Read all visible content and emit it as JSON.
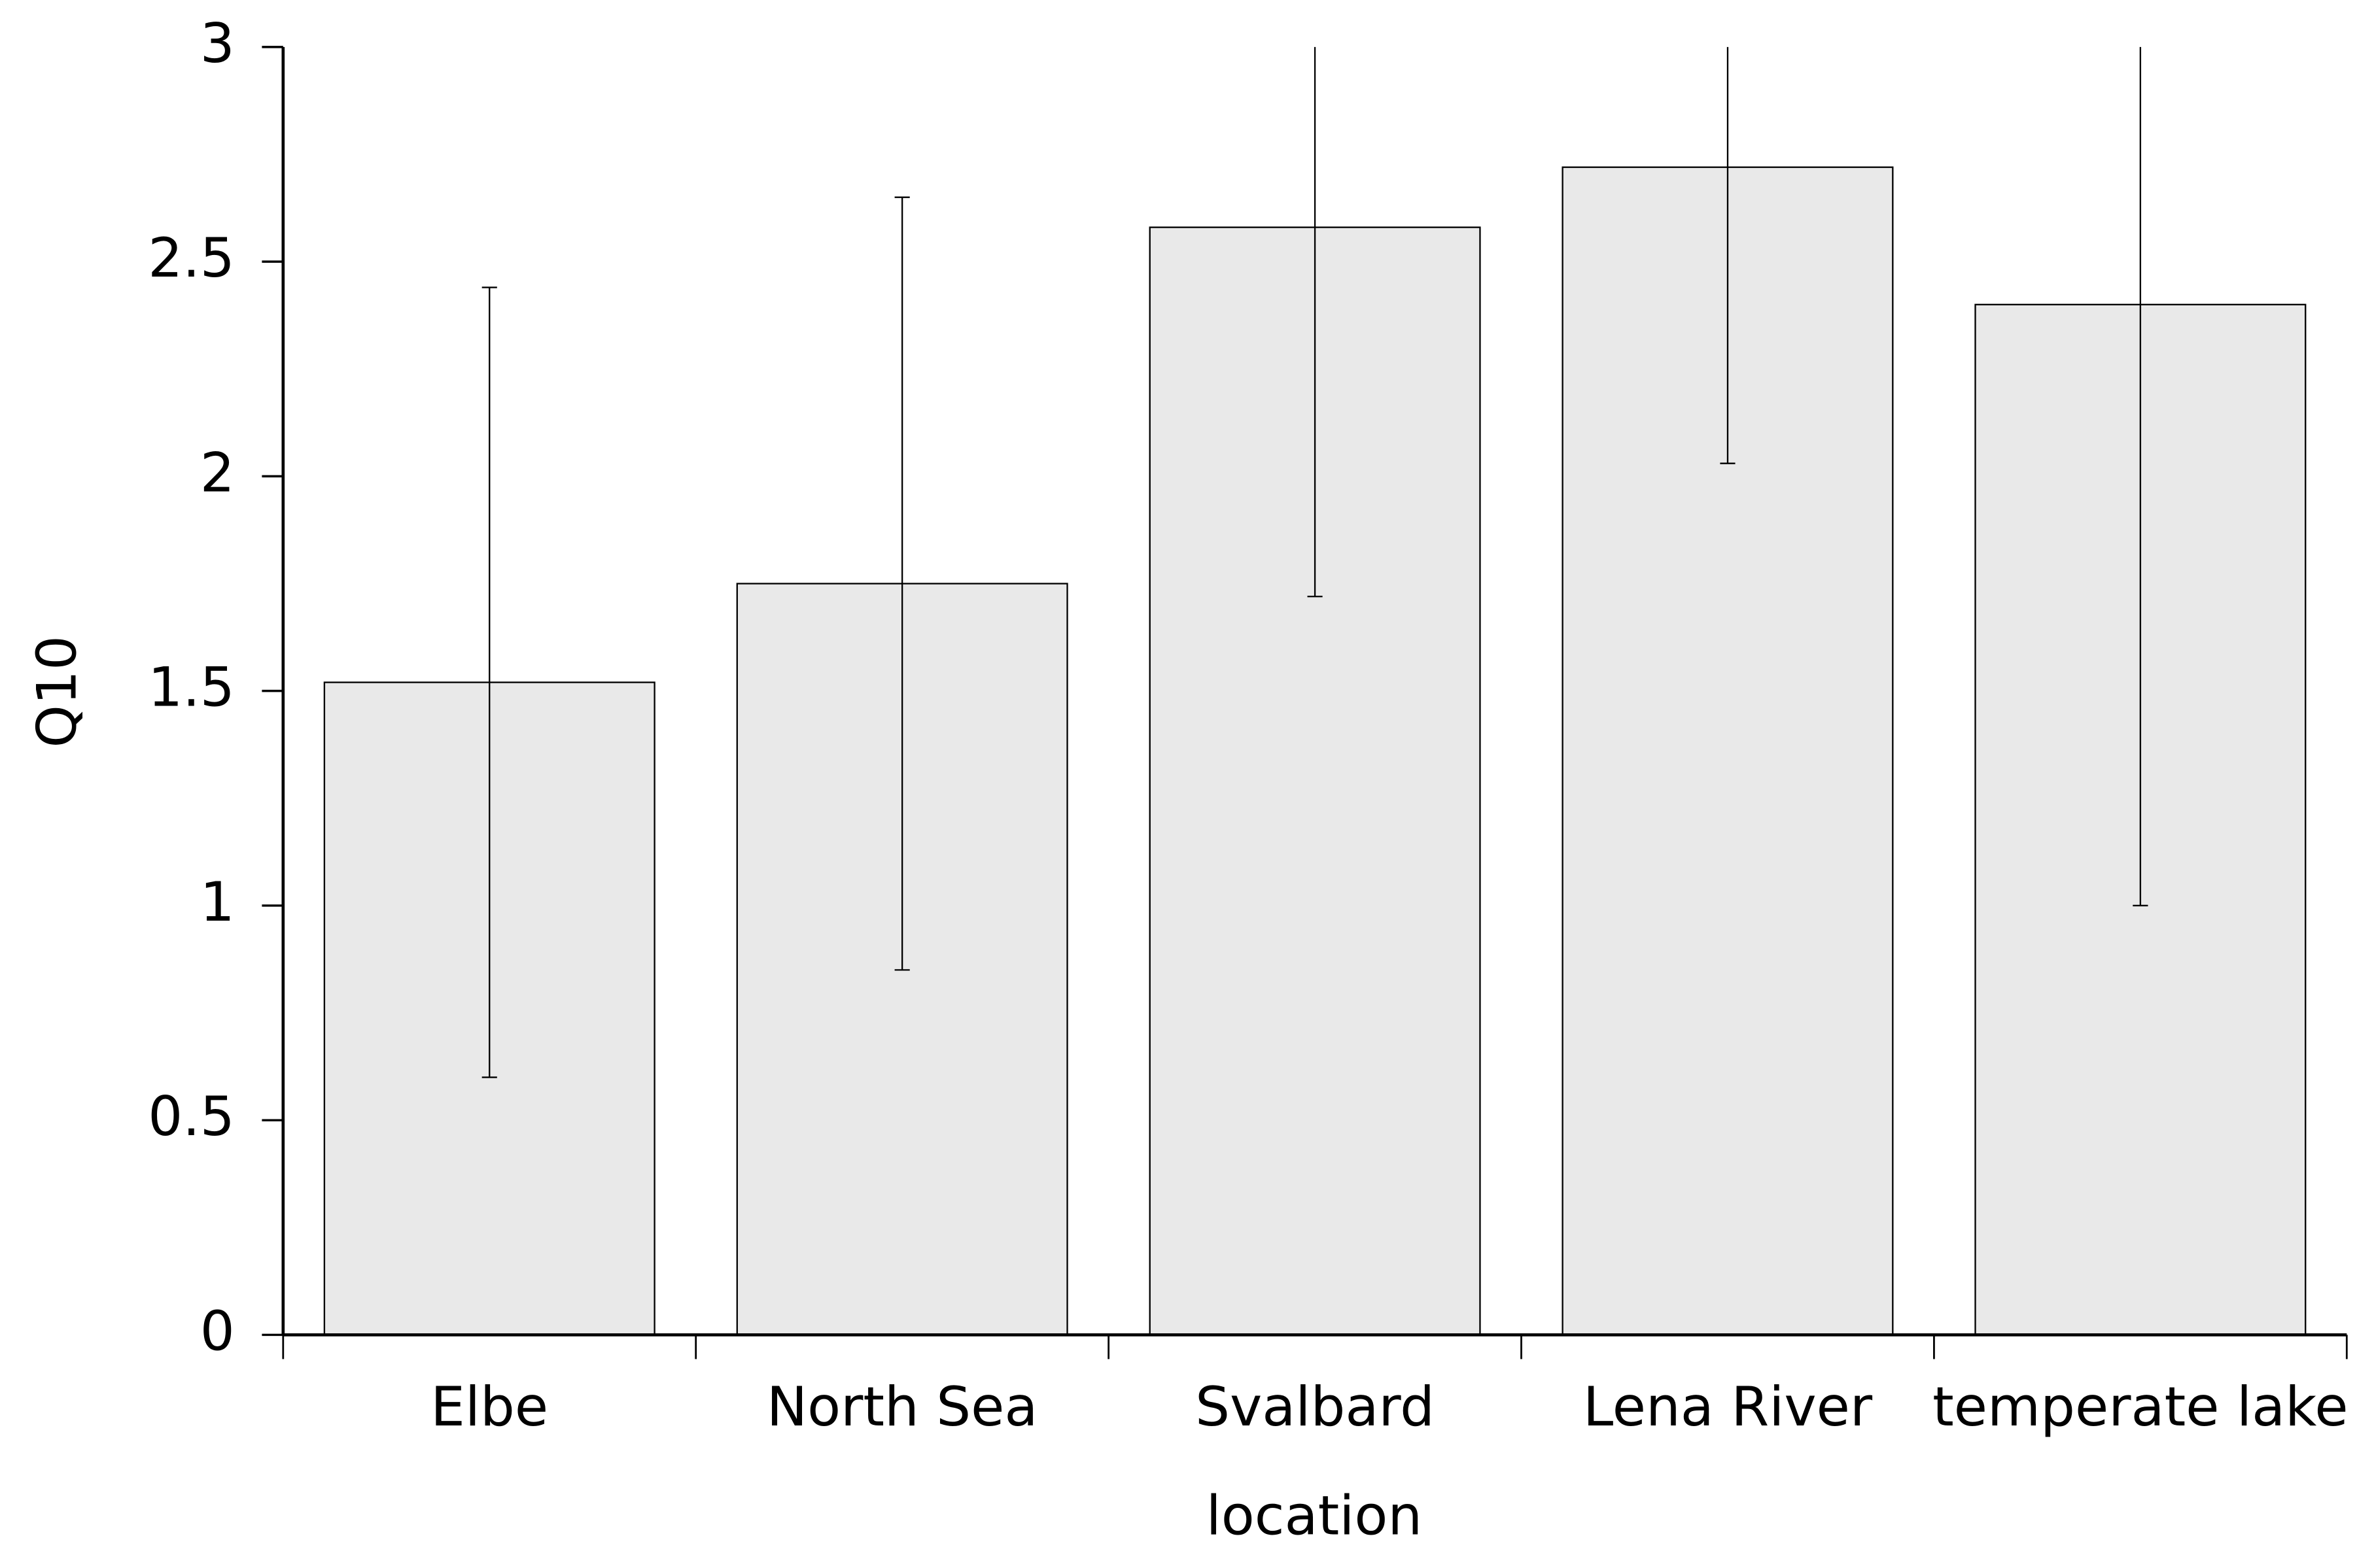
{
  "chart_data": {
    "type": "bar",
    "categories": [
      "Elbe",
      "North Sea",
      "Svalbard",
      "Lena River",
      "temperate lake"
    ],
    "values": [
      1.52,
      1.75,
      2.58,
      2.72,
      2.4
    ],
    "errors": [
      0.92,
      0.9,
      0.86,
      0.69,
      1.4
    ],
    "color": "#e9e9e9",
    "ylim": [
      0,
      3
    ],
    "yticks": [
      0,
      0.5,
      1,
      1.5,
      2,
      2.5,
      3
    ],
    "y_label": "Q10",
    "x_label": "location",
    "grid": false
  }
}
